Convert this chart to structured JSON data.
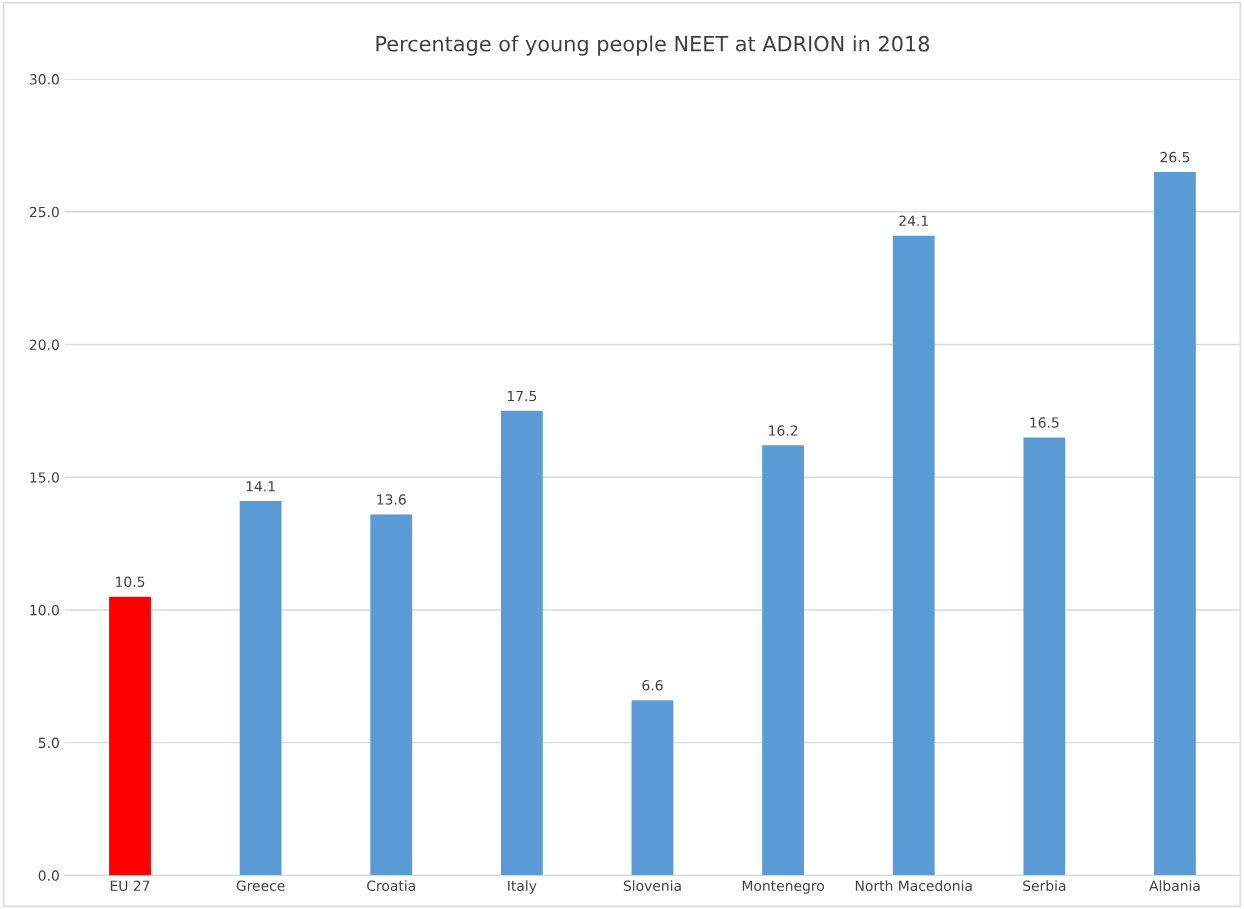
{
  "chart_data": {
    "type": "bar",
    "title": "Percentage of young people NEET at ADRION in 2018",
    "categories": [
      "EU 27",
      "Greece",
      "Croatia",
      "Italy",
      "Slovenia",
      "Montenegro",
      "North Macedonia",
      "Serbia",
      "Albania"
    ],
    "values": [
      10.5,
      14.1,
      13.6,
      17.5,
      6.6,
      16.2,
      24.1,
      16.5,
      26.5
    ],
    "colors": [
      "#ff0000",
      "#5b9bd5",
      "#5b9bd5",
      "#5b9bd5",
      "#5b9bd5",
      "#5b9bd5",
      "#5b9bd5",
      "#5b9bd5",
      "#5b9bd5"
    ],
    "ylim": [
      0,
      30
    ],
    "yticks": [
      {
        "value": 0,
        "label": "0.0"
      },
      {
        "value": 5,
        "label": "5.0"
      },
      {
        "value": 10,
        "label": "10.0"
      },
      {
        "value": 15,
        "label": "15.0"
      },
      {
        "value": 20,
        "label": "20.0"
      },
      {
        "value": 25,
        "label": "25.0"
      },
      {
        "value": 30,
        "label": "30.0"
      }
    ],
    "grid": "y",
    "data_labels": true,
    "legend": false
  }
}
